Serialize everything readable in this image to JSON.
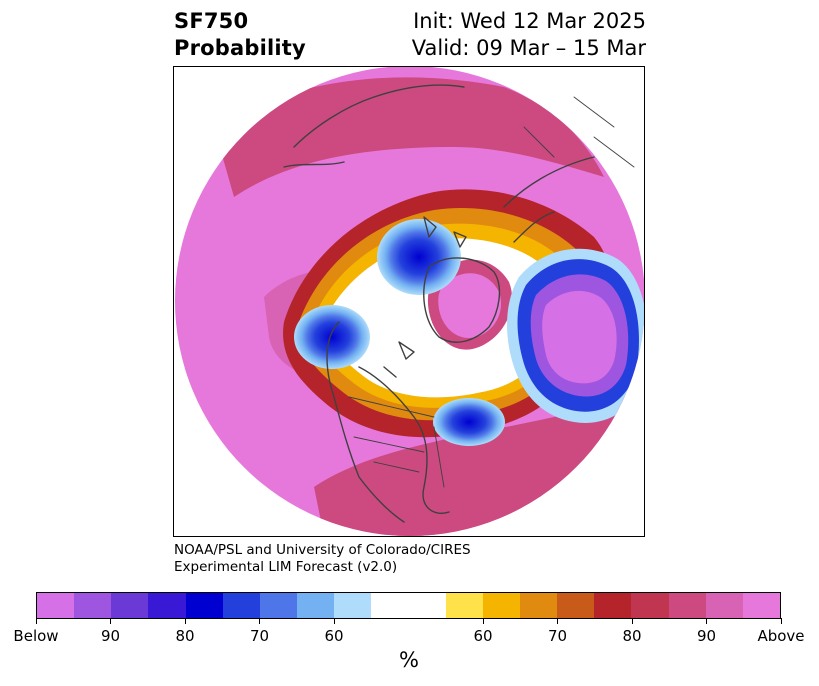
{
  "title": {
    "variable": "SF750",
    "product": "Probability",
    "init": "Init: Wed 12 Mar 2025",
    "valid": "Valid: 09 Mar – 15 Mar"
  },
  "credits": {
    "line1": "NOAA/PSL and University of Colorado/CIRES",
    "line2": "Experimental LIM Forecast (v2.0)"
  },
  "map": {
    "projection": "north-polar-stereographic",
    "background": "#ffffff",
    "coastline_color": "#404040"
  },
  "colorbar": {
    "unit": "%",
    "segments": [
      {
        "color": "#d670e6",
        "category": "below"
      },
      {
        "color": "#9e56e0",
        "category": "below"
      },
      {
        "color": "#6b3ad6",
        "category": "below"
      },
      {
        "color": "#3918d6",
        "category": "below"
      },
      {
        "color": "#0000d0",
        "category": "below"
      },
      {
        "color": "#2340dc",
        "category": "below"
      },
      {
        "color": "#4f76e8",
        "category": "below"
      },
      {
        "color": "#73b1f2",
        "category": "below"
      },
      {
        "color": "#aedcfa",
        "category": "below"
      },
      {
        "color": "#ffffff",
        "category": "neutral"
      },
      {
        "color": "#ffe14a",
        "category": "above"
      },
      {
        "color": "#f5b400",
        "category": "above"
      },
      {
        "color": "#e08a10",
        "category": "above"
      },
      {
        "color": "#c85a1a",
        "category": "above"
      },
      {
        "color": "#b4242a",
        "category": "above"
      },
      {
        "color": "#c03650",
        "category": "above"
      },
      {
        "color": "#cc4a80",
        "category": "above"
      },
      {
        "color": "#d862b4",
        "category": "above"
      },
      {
        "color": "#e678dc",
        "category": "above"
      }
    ],
    "tick_labels": [
      "Below",
      "90",
      "80",
      "70",
      "60",
      "60",
      "70",
      "80",
      "90",
      "Above"
    ]
  }
}
